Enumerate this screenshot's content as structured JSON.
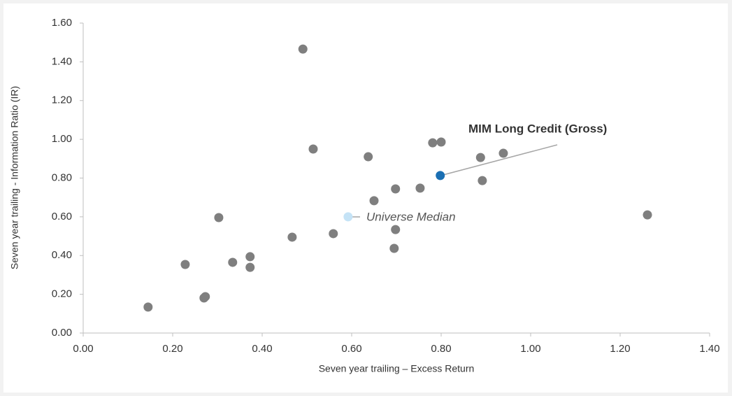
{
  "chart_data": {
    "type": "scatter",
    "x_label": "Seven year trailing – Excess Return",
    "y_label": "Seven year trailing - Information Ratio (IR)",
    "xlim": [
      0,
      1.4
    ],
    "xticks": [
      {
        "value": 0,
        "label": "0.00"
      },
      {
        "value": 0.2,
        "label": "0.20"
      },
      {
        "value": 0.4,
        "label": "0.40"
      },
      {
        "value": 0.6,
        "label": "0.60"
      },
      {
        "value": 0.8,
        "label": "0.80"
      },
      {
        "value": 1,
        "label": "1.00"
      },
      {
        "value": 1.2,
        "label": "1.20"
      },
      {
        "value": 1.4,
        "label": "1.40"
      }
    ],
    "ylim": [
      0,
      1.6
    ],
    "yticks": [
      {
        "value": 0,
        "label": "0.00"
      },
      {
        "value": 0.2,
        "label": "0.20"
      },
      {
        "value": 0.4,
        "label": "0.40"
      },
      {
        "value": 0.6,
        "label": "0.60"
      },
      {
        "value": 0.8,
        "label": "0.80"
      },
      {
        "value": 1,
        "label": "1.00"
      },
      {
        "value": 1.2,
        "label": "1.20"
      },
      {
        "value": 1.4,
        "label": "1.40"
      },
      {
        "value": 1.6,
        "label": "1.60"
      }
    ],
    "color": "#7f7f7f",
    "x": [
      0.145,
      0.228,
      0.27,
      0.273,
      0.303,
      0.334,
      0.373,
      0.373,
      0.467,
      0.491,
      0.514,
      0.559,
      0.637,
      0.65,
      0.698,
      0.698,
      0.695,
      0.753,
      0.781,
      0.8,
      0.888,
      0.892,
      0.939,
      1.261
    ],
    "y": [
      0.134,
      0.354,
      0.181,
      0.188,
      0.596,
      0.365,
      0.394,
      0.339,
      0.495,
      1.466,
      0.95,
      0.513,
      0.91,
      0.683,
      0.744,
      0.534,
      0.437,
      0.748,
      0.982,
      0.986,
      0.906,
      0.787,
      0.928,
      0.61
    ],
    "annotations": [
      {
        "text": "MIM Long Credit (Gross)",
        "x": 0.798,
        "y": 0.813,
        "color": "#1a6fb3"
      },
      {
        "text": "Universe Median",
        "x": 0.592,
        "y": 0.6,
        "color": "#c5e3f6"
      }
    ]
  }
}
